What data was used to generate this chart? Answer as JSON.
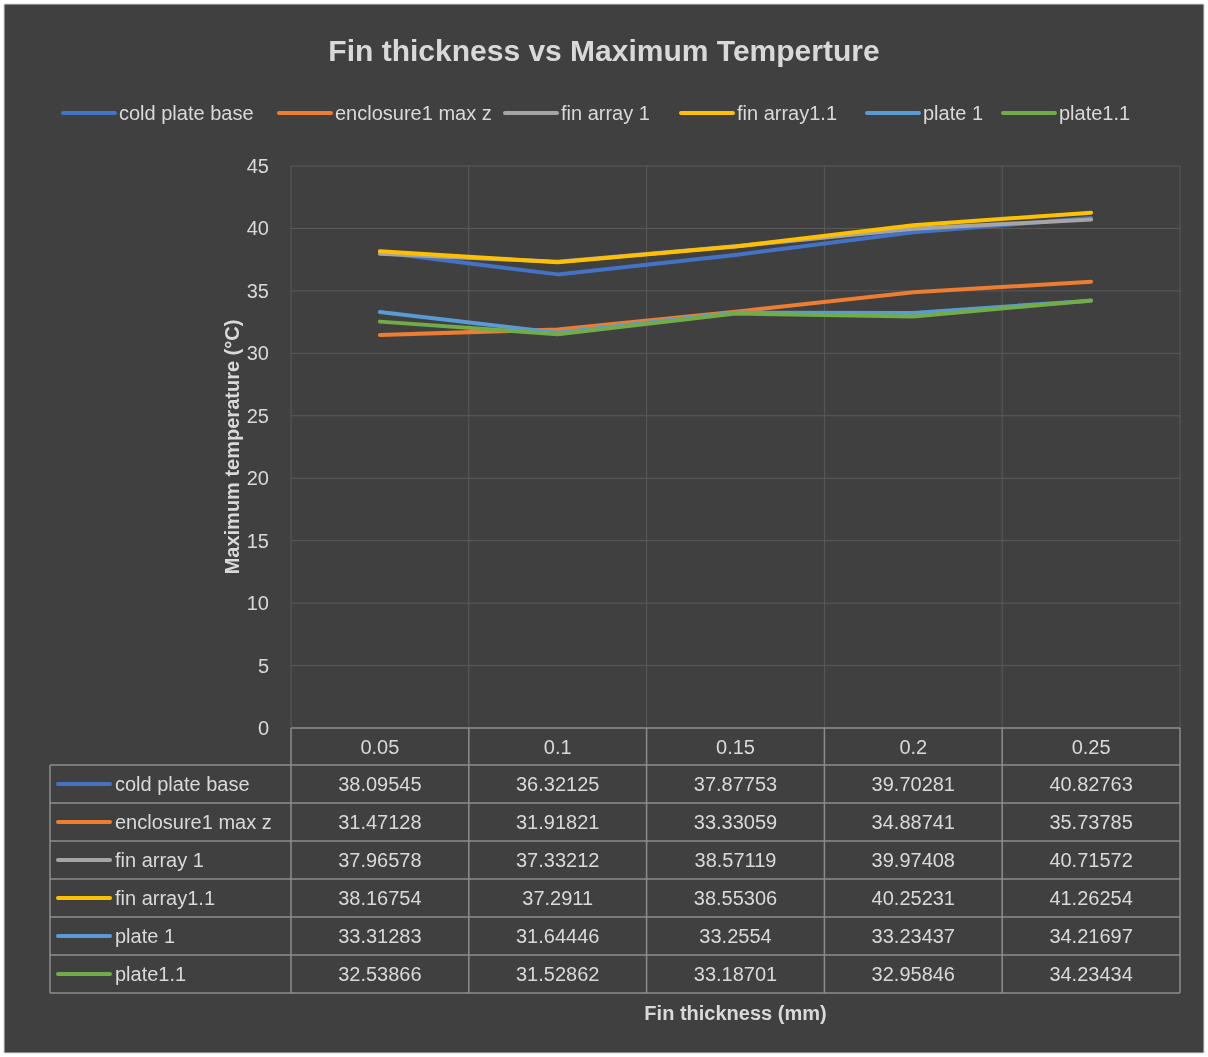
{
  "chart_data": {
    "type": "line",
    "title": "Fin thickness vs Maximum Temperture",
    "annotations": [
      "Fin thickness (mm)"
    ],
    "ylabel": "Maximum temperature (°C)",
    "categories": [
      "0.05",
      "0.1",
      "0.15",
      "0.2",
      "0.25"
    ],
    "series": [
      {
        "name": "cold plate base",
        "color": "#4472c4",
        "values": [
          38.09545,
          36.32125,
          37.87753,
          39.70281,
          40.82763
        ]
      },
      {
        "name": "enclosure1 max z",
        "color": "#ed7d31",
        "values": [
          31.47128,
          31.91821,
          33.33059,
          34.88741,
          35.73785
        ]
      },
      {
        "name": "fin array 1",
        "color": "#a5a5a5",
        "values": [
          37.96578,
          37.33212,
          38.57119,
          39.97408,
          40.71572
        ]
      },
      {
        "name": "fin array1.1",
        "color": "#ffc000",
        "values": [
          38.16754,
          37.2911,
          38.55306,
          40.25231,
          41.26254
        ]
      },
      {
        "name": "plate 1",
        "color": "#5b9bd5",
        "values": [
          33.31283,
          31.64446,
          33.2554,
          33.23437,
          34.21697
        ]
      },
      {
        "name": "plate1.1",
        "color": "#70ad47",
        "values": [
          32.53866,
          31.52862,
          33.18701,
          32.95846,
          34.23434
        ]
      }
    ],
    "ylim": [
      0,
      45
    ],
    "yticks": [
      0,
      5,
      10,
      15,
      20,
      25,
      30,
      35,
      40,
      45
    ],
    "grid": true,
    "legend": "top",
    "data_labels": true,
    "line_style": "solid",
    "marker": "none"
  }
}
